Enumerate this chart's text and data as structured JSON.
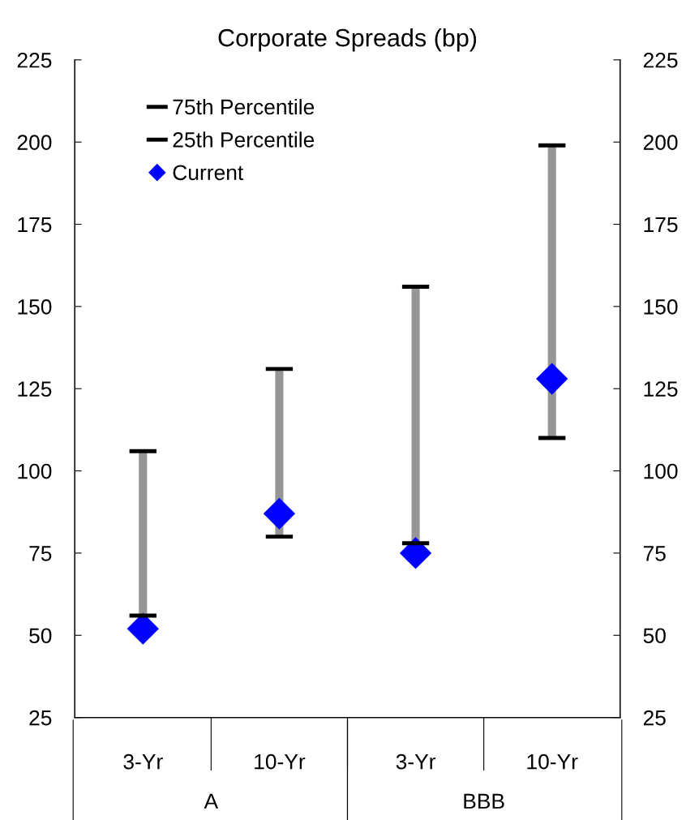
{
  "chart_data": {
    "type": "scatter",
    "title": "Corporate Spreads (bp)",
    "categories": [
      "3-Yr",
      "10-Yr",
      "3-Yr",
      "10-Yr"
    ],
    "series": [
      {
        "type": "bar",
        "color": "#969696",
        "base": [
          56,
          80,
          78,
          110
        ],
        "values": [
          50,
          51,
          78,
          89
        ]
      },
      {
        "name": "75th Percentile",
        "type": "scatter",
        "marker": "none",
        "color": "#000000",
        "values": [
          null,
          null,
          null,
          null
        ]
      },
      {
        "name": "25th Percentile",
        "type": "scatter",
        "marker": "none",
        "color": "#000000",
        "values": [
          null,
          null,
          null,
          null
        ]
      },
      {
        "name": "Current",
        "marker": "diamond",
        "color": "#0000ff",
        "values": [
          52,
          87,
          75,
          128
        ],
        "errors": [
          [
            56,
            106
          ],
          [
            80,
            131
          ],
          [
            78,
            156
          ],
          [
            110,
            199
          ]
        ]
      }
    ],
    "ylim": [
      25,
      225
    ],
    "yticks": [
      25,
      50,
      75,
      100,
      125,
      150,
      175,
      200,
      225
    ],
    "y2lim": [
      25,
      225
    ],
    "y2ticks": [
      25,
      50,
      75,
      100,
      125,
      150,
      175,
      200,
      225
    ],
    "annotations": [
      "A",
      "BBB"
    ],
    "legend": "top left",
    "grid": false
  }
}
